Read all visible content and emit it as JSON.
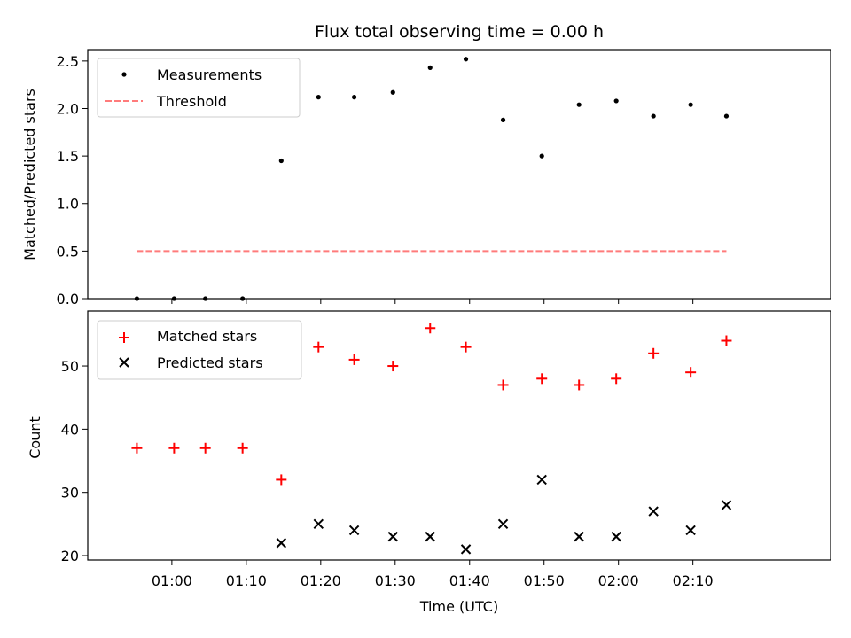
{
  "chart_data": [
    {
      "type": "scatter",
      "title": "Flux total observing time = 0.00 h",
      "xlabel": "",
      "ylabel": "Matched/Predicted stars",
      "ylim": [
        0,
        2.62
      ],
      "yticks": [
        "0.0",
        "0.5",
        "1.0",
        "1.5",
        "2.0",
        "2.5"
      ],
      "ytick_values": [
        0,
        0.5,
        1.0,
        1.5,
        2.0,
        2.5
      ],
      "x_minutes_range": [
        -11.3,
        88.5
      ],
      "legend_position": "upper left",
      "series": [
        {
          "name": "Measurements",
          "kind": "dot",
          "color": "#000000",
          "x_minutes": [
            -4.7,
            0.3,
            4.5,
            9.5,
            14.7,
            19.7,
            24.5,
            29.7,
            34.7,
            39.5,
            44.5,
            49.7,
            54.7,
            59.7,
            64.7,
            69.7,
            74.5
          ],
          "values": [
            0.0,
            0.0,
            0.0,
            0.0,
            1.45,
            2.12,
            2.12,
            2.17,
            2.43,
            2.52,
            1.88,
            1.5,
            2.04,
            2.08,
            1.92,
            2.04,
            1.92
          ]
        },
        {
          "name": "Threshold",
          "kind": "dashed-line",
          "color": "#ff7b7b",
          "x_minutes": [
            -4.7,
            74.5
          ],
          "values": [
            0.5,
            0.5
          ]
        }
      ]
    },
    {
      "type": "scatter",
      "title": "",
      "xlabel": "Time (UTC)",
      "ylabel": "Count",
      "ylim": [
        19.3,
        58.7
      ],
      "yticks": [
        "20",
        "30",
        "40",
        "50"
      ],
      "ytick_values": [
        20,
        30,
        40,
        50
      ],
      "x_minutes_range": [
        -11.3,
        88.5
      ],
      "xticks": [
        "01:00",
        "01:10",
        "01:20",
        "01:30",
        "01:40",
        "01:50",
        "02:00",
        "02:10"
      ],
      "xtick_minutes": [
        0,
        10,
        20,
        30,
        40,
        50,
        60,
        70
      ],
      "legend_position": "upper left",
      "series": [
        {
          "name": "Matched stars",
          "kind": "plus",
          "color": "#ff0000",
          "x_minutes": [
            -4.7,
            0.3,
            4.5,
            9.5,
            14.7,
            19.7,
            24.5,
            29.7,
            34.7,
            39.5,
            44.5,
            49.7,
            54.7,
            59.7,
            64.7,
            69.7,
            74.5
          ],
          "values": [
            37,
            37,
            37,
            37,
            32,
            53,
            51,
            50,
            56,
            53,
            47,
            48,
            47,
            48,
            52,
            49,
            54
          ]
        },
        {
          "name": "Predicted stars",
          "kind": "cross",
          "color": "#000000",
          "x_minutes": [
            14.7,
            19.7,
            24.5,
            29.7,
            34.7,
            39.5,
            44.5,
            49.7,
            54.7,
            59.7,
            64.7,
            69.7,
            74.5
          ],
          "values": [
            22,
            25,
            24,
            23,
            23,
            21,
            25,
            32,
            23,
            23,
            27,
            24,
            28
          ]
        }
      ]
    }
  ]
}
